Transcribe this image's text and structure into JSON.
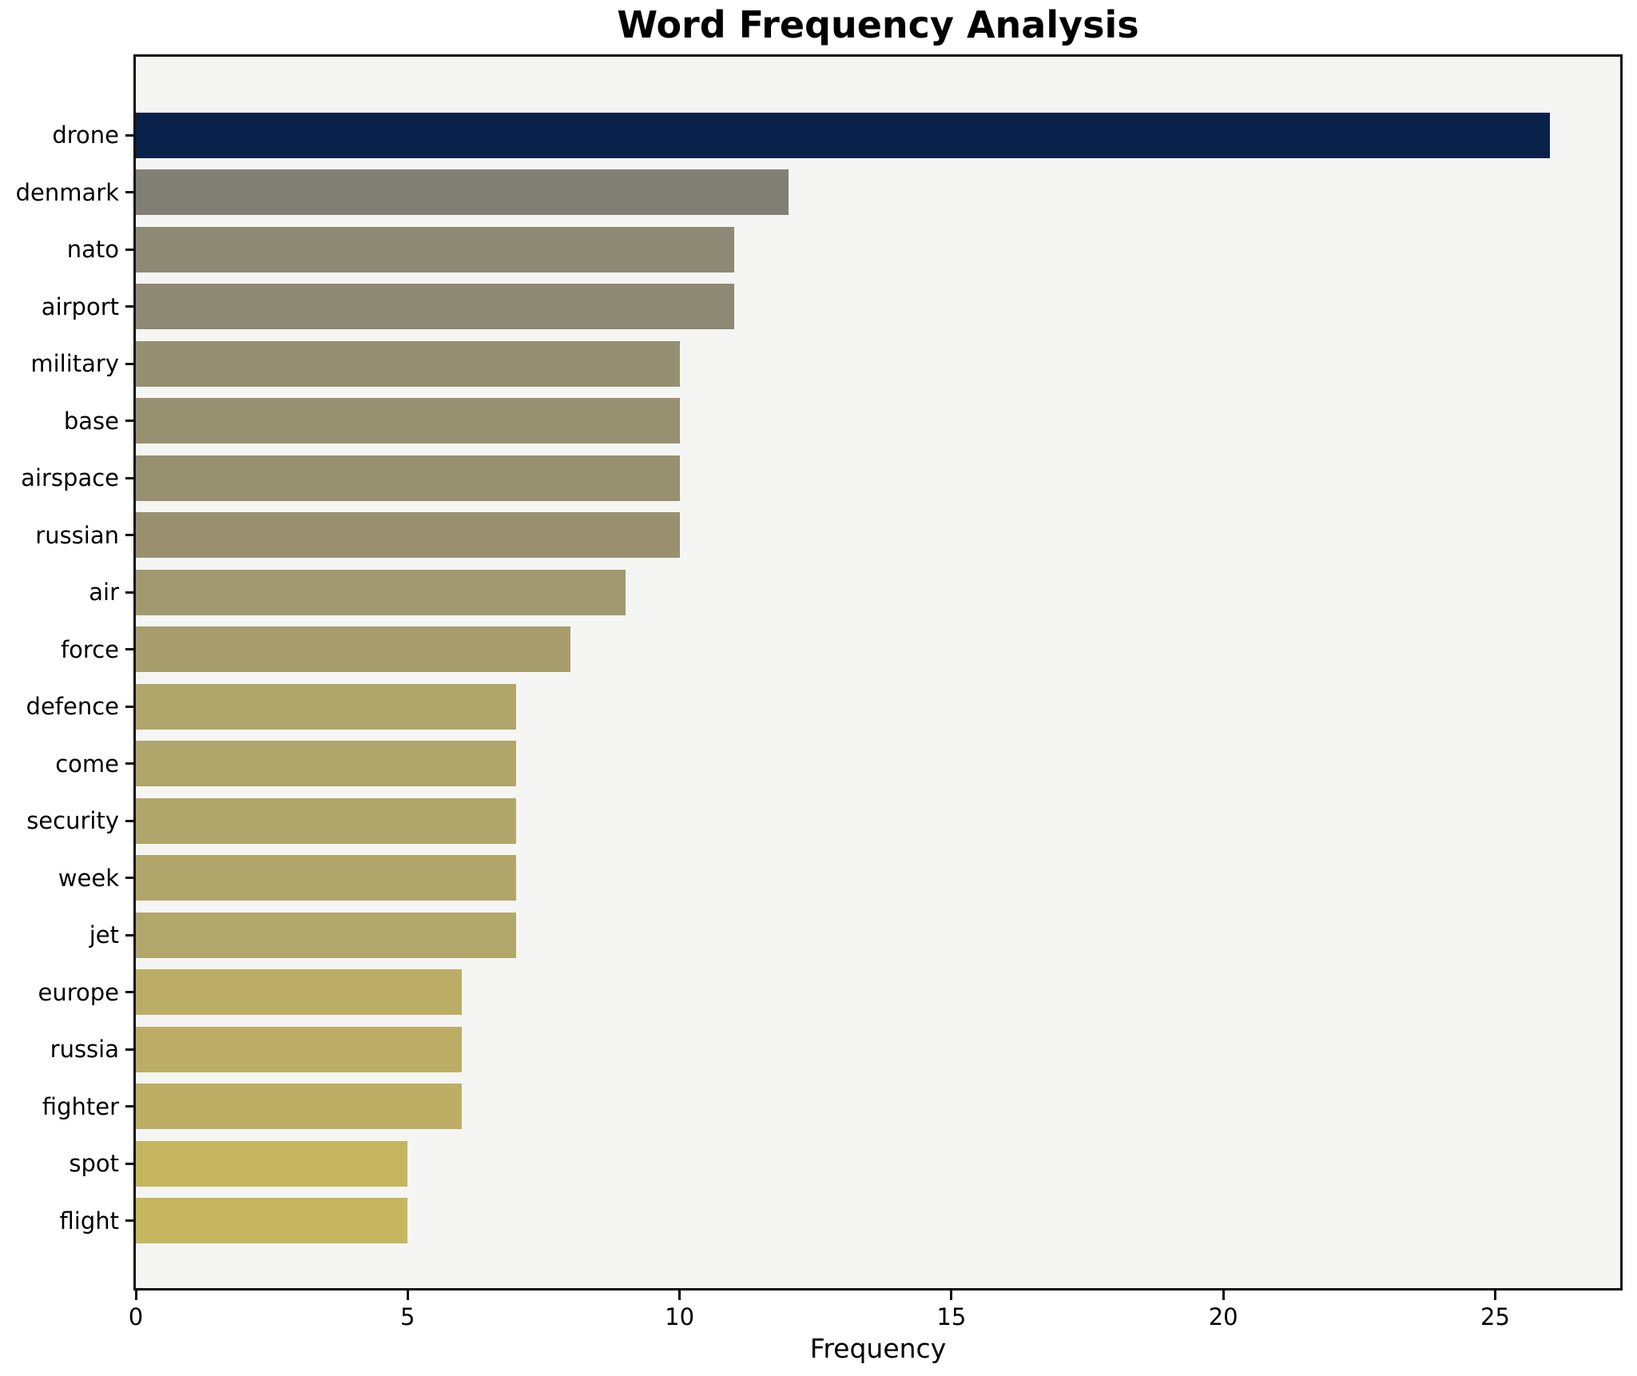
{
  "chart_data": {
    "type": "bar",
    "orientation": "horizontal",
    "title": "Word Frequency Analysis",
    "xlabel": "Frequency",
    "ylabel": "",
    "categories": [
      "drone",
      "denmark",
      "nato",
      "airport",
      "military",
      "base",
      "airspace",
      "russian",
      "air",
      "force",
      "defence",
      "come",
      "security",
      "week",
      "jet",
      "europe",
      "russia",
      "fighter",
      "spot",
      "flight"
    ],
    "values": [
      26,
      12,
      11,
      11,
      10,
      10,
      10,
      10,
      9,
      8,
      7,
      7,
      7,
      7,
      7,
      6,
      6,
      6,
      5,
      5
    ],
    "bar_colors": [
      "#08224a",
      "#827f74",
      "#8d8974",
      "#8d8974",
      "#959071",
      "#979071",
      "#979071",
      "#98906f",
      "#a09970",
      "#a89d6c",
      "#b0a56b",
      "#b0a56b",
      "#b1a66a",
      "#b1a66a",
      "#b2a76a",
      "#bbad66",
      "#bbad66",
      "#bcae65",
      "#c5b55f",
      "#c6b65f"
    ],
    "xlim": [
      0,
      27.3
    ],
    "xticks": [
      0,
      5,
      10,
      15,
      20,
      25
    ],
    "xtick_labels": [
      "0",
      "5",
      "10",
      "15",
      "20",
      "25"
    ],
    "grid": false,
    "legend": "none",
    "colors": {
      "figure_background": "#ffffff",
      "plot_background": "#f5f5f3",
      "spine": "#0e0e0e",
      "text": "#000000"
    }
  }
}
